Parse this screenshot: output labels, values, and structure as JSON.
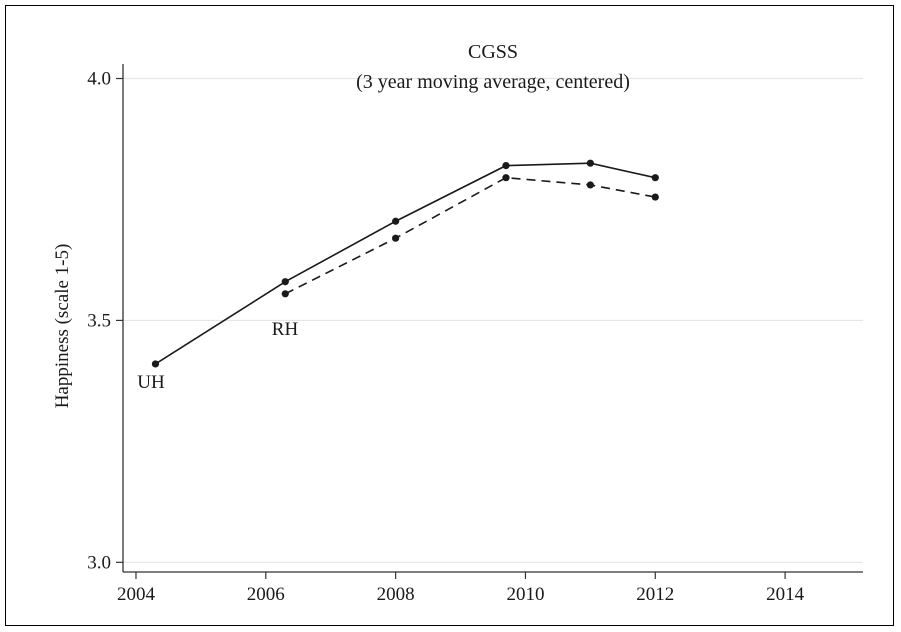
{
  "chart_data": {
    "type": "line",
    "title": "CGSS",
    "subtitle": "(3 year moving average, centered)",
    "xlabel": "",
    "ylabel": "Happiness (scale 1-5)",
    "xlim": [
      2003.8,
      2015.2
    ],
    "ylim": [
      2.98,
      4.03
    ],
    "x_ticks": [
      2004,
      2006,
      2008,
      2010,
      2012,
      2014
    ],
    "x_tick_labels": [
      "2004",
      "2006",
      "2008",
      "2010",
      "2012",
      "2014"
    ],
    "y_ticks": [
      3.0,
      3.5,
      4.0
    ],
    "y_tick_labels": [
      "3.0",
      "3.5",
      "4.0"
    ],
    "grid": "horizontal",
    "series": [
      {
        "name": "UH",
        "style": "solid",
        "color": "#1a1a1a",
        "x": [
          2004.3,
          2006.3,
          2008.0,
          2009.7,
          2011.0,
          2012.0
        ],
        "y": [
          3.41,
          3.58,
          3.705,
          3.82,
          3.825,
          3.795
        ]
      },
      {
        "name": "RH",
        "style": "dashed",
        "color": "#1a1a1a",
        "x": [
          2006.3,
          2008.0,
          2009.7,
          2011.0,
          2012.0
        ],
        "y": [
          3.555,
          3.67,
          3.795,
          3.78,
          3.755
        ]
      }
    ]
  }
}
